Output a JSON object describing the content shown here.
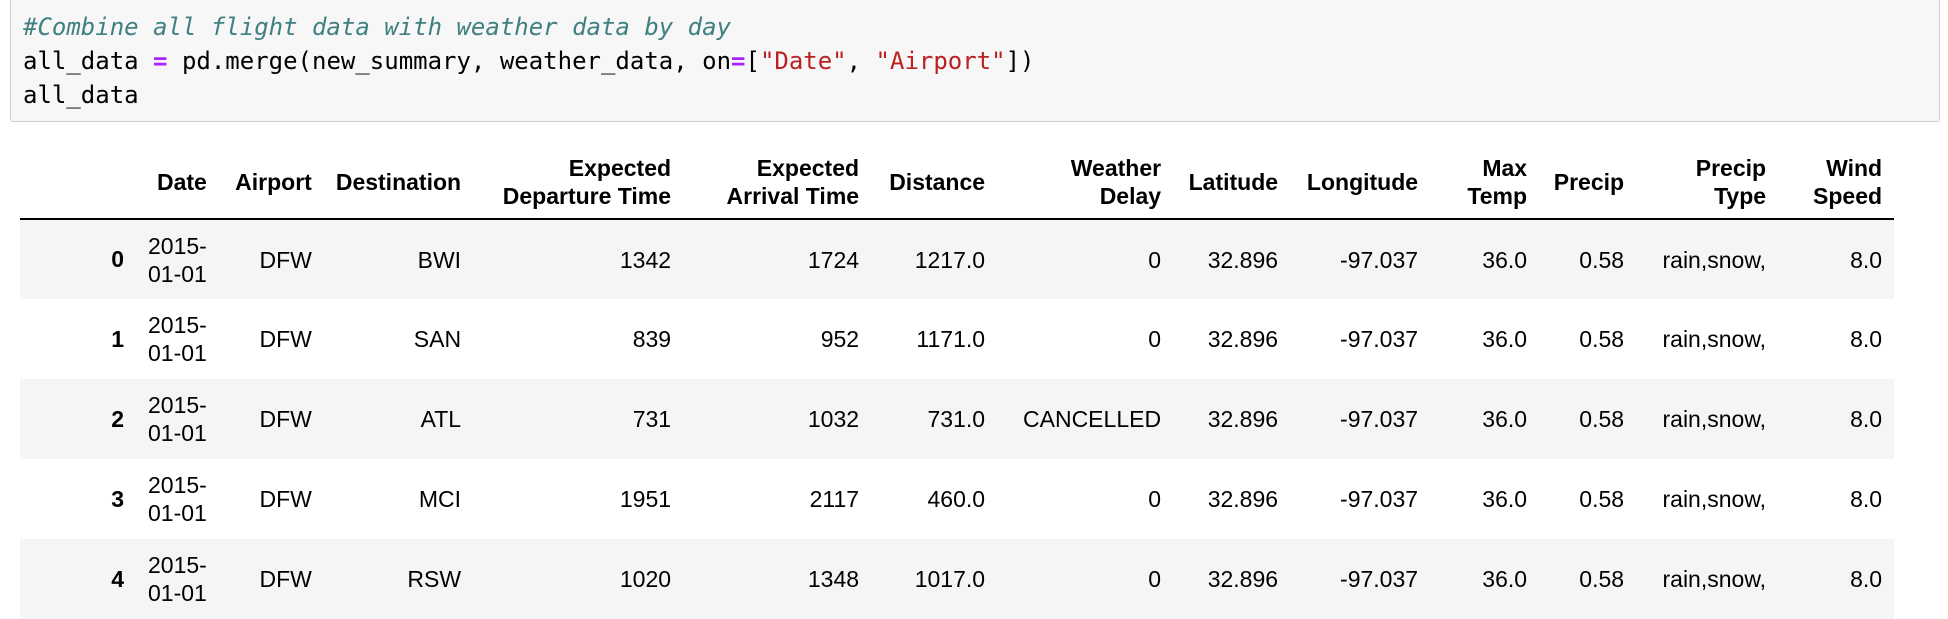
{
  "code_cell": {
    "comment": "#Combine all flight data with weather data by day",
    "line2_var": "all_data ",
    "line2_eq": "=",
    "line2_call": " pd.merge(new_summary, weather_data, on",
    "line2_eq2": "=",
    "line2_open": "[",
    "line2_str1": "\"Date\"",
    "line2_sep": ", ",
    "line2_str2": "\"Airport\"",
    "line2_close": "])",
    "line3": "all_data"
  },
  "table": {
    "columns": [
      {
        "line1": "",
        "line2": ""
      },
      {
        "line1": "",
        "line2": "Date"
      },
      {
        "line1": "",
        "line2": "Airport"
      },
      {
        "line1": "",
        "line2": "Destination"
      },
      {
        "line1": "Expected",
        "line2": "Departure Time"
      },
      {
        "line1": "Expected",
        "line2": "Arrival Time"
      },
      {
        "line1": "",
        "line2": "Distance"
      },
      {
        "line1": "Weather",
        "line2": "Delay"
      },
      {
        "line1": "",
        "line2": "Latitude"
      },
      {
        "line1": "",
        "line2": "Longitude"
      },
      {
        "line1": "Max",
        "line2": "Temp"
      },
      {
        "line1": "",
        "line2": "Precip"
      },
      {
        "line1": "Precip",
        "line2": "Type"
      },
      {
        "line1": "Wind",
        "line2": "Speed"
      }
    ],
    "rows": [
      {
        "index": "0",
        "date1": "2015-",
        "date2": "01-01",
        "airport": "DFW",
        "destination": "BWI",
        "dep": "1342",
        "arr": "1724",
        "distance": "1217.0",
        "weather_delay": "0",
        "lat": "32.896",
        "lon": "-97.037",
        "max_temp": "36.0",
        "precip": "0.58",
        "precip_type": "rain,snow,",
        "wind": "8.0"
      },
      {
        "index": "1",
        "date1": "2015-",
        "date2": "01-01",
        "airport": "DFW",
        "destination": "SAN",
        "dep": "839",
        "arr": "952",
        "distance": "1171.0",
        "weather_delay": "0",
        "lat": "32.896",
        "lon": "-97.037",
        "max_temp": "36.0",
        "precip": "0.58",
        "precip_type": "rain,snow,",
        "wind": "8.0"
      },
      {
        "index": "2",
        "date1": "2015-",
        "date2": "01-01",
        "airport": "DFW",
        "destination": "ATL",
        "dep": "731",
        "arr": "1032",
        "distance": "731.0",
        "weather_delay": "CANCELLED",
        "lat": "32.896",
        "lon": "-97.037",
        "max_temp": "36.0",
        "precip": "0.58",
        "precip_type": "rain,snow,",
        "wind": "8.0"
      },
      {
        "index": "3",
        "date1": "2015-",
        "date2": "01-01",
        "airport": "DFW",
        "destination": "MCI",
        "dep": "1951",
        "arr": "2117",
        "distance": "460.0",
        "weather_delay": "0",
        "lat": "32.896",
        "lon": "-97.037",
        "max_temp": "36.0",
        "precip": "0.58",
        "precip_type": "rain,snow,",
        "wind": "8.0"
      },
      {
        "index": "4",
        "date1": "2015-",
        "date2": "01-01",
        "airport": "DFW",
        "destination": "RSW",
        "dep": "1020",
        "arr": "1348",
        "distance": "1017.0",
        "weather_delay": "0",
        "lat": "32.896",
        "lon": "-97.037",
        "max_temp": "36.0",
        "precip": "0.58",
        "precip_type": "rain,snow,",
        "wind": "8.0"
      }
    ]
  }
}
